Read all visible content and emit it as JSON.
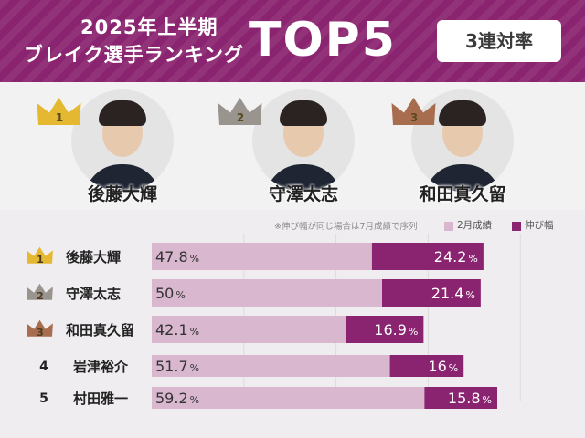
{
  "header": {
    "title_line1": "2025年上半期",
    "title_line2": "ブレイク選手ランキング",
    "top5": "TOP5",
    "badge": "3連対率"
  },
  "top3": [
    {
      "rank": "1",
      "name": "後藤大輝",
      "crown": "gold-crown-icon"
    },
    {
      "rank": "2",
      "name": "守澤太志",
      "crown": "silver-crown-icon"
    },
    {
      "rank": "3",
      "name": "和田真久留",
      "crown": "bronze-crown-icon"
    }
  ],
  "legend": {
    "note": "※伸び幅が同じ場合は7月成績で序列",
    "base_label": "2月成績",
    "gain_label": "伸び幅"
  },
  "colors": {
    "brand": "#8a2470",
    "base_bar": "#d9b7cf",
    "gain_bar": "#8a2470",
    "gold": "#e4b830",
    "silver": "#9a948f",
    "bronze": "#a86c4f"
  },
  "chart_data": {
    "type": "bar",
    "orientation": "horizontal",
    "stacked": true,
    "categories": [
      "後藤大輝",
      "守澤太志",
      "和田真久留",
      "岩津裕介",
      "村田雅一"
    ],
    "ranks": [
      "1",
      "2",
      "3",
      "4",
      "5"
    ],
    "unit": "%",
    "series": [
      {
        "name": "2月成績",
        "values": [
          47.8,
          50,
          42.1,
          51.7,
          59.2
        ]
      },
      {
        "name": "伸び幅",
        "values": [
          24.2,
          21.4,
          16.9,
          16,
          15.8
        ]
      }
    ],
    "xlim": [
      0,
      80
    ],
    "grid": true,
    "legend_position": "top-right"
  }
}
